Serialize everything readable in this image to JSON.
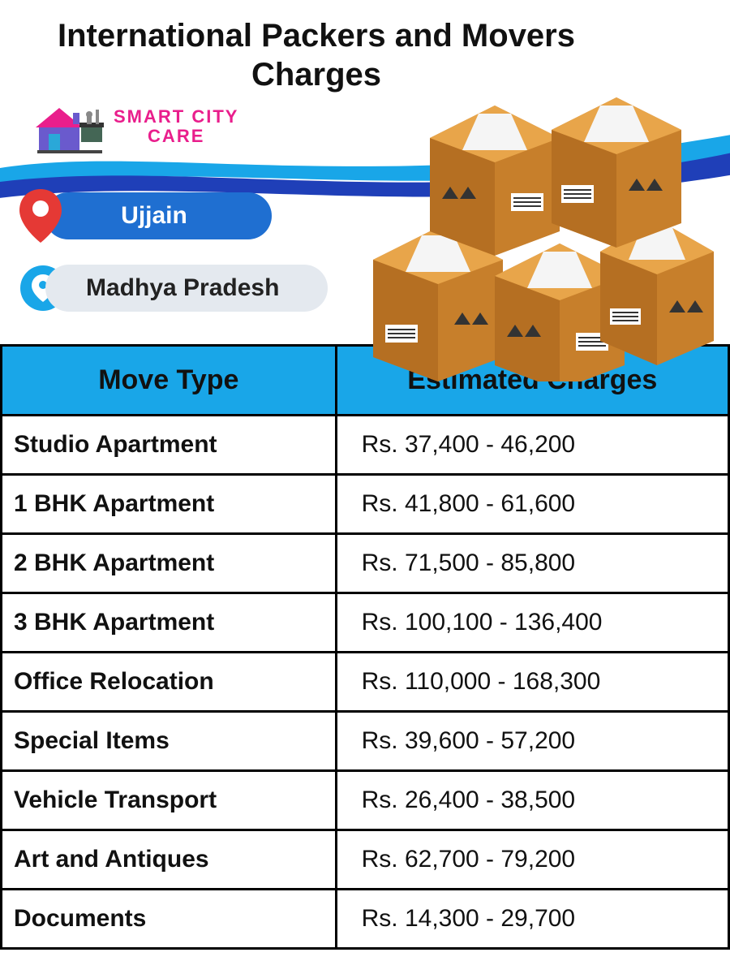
{
  "title": "International Packers and Movers Charges",
  "brand": {
    "line1": "SMART CITY",
    "line2": "CARE",
    "color": "#e91e8c"
  },
  "locations": {
    "city": "Ujjain",
    "state": "Madhya Pradesh",
    "city_pill_bg": "#1f6fd1",
    "state_pill_bg": "#e4e9ef",
    "pin_red": "#e53935",
    "pin_blue": "#19a6e8"
  },
  "swoosh_colors": {
    "top": "#19a6e8",
    "bottom": "#1f3fb8"
  },
  "boxes_color": "#e39a3b",
  "table": {
    "header_bg": "#19a6e8",
    "border_color": "#000000",
    "columns": [
      "Move Type",
      "Estimated Charges"
    ],
    "rows": [
      [
        "Studio Apartment",
        "Rs. 37,400 - 46,200"
      ],
      [
        "1 BHK Apartment",
        "Rs. 41,800 - 61,600"
      ],
      [
        "2 BHK Apartment",
        "Rs. 71,500 - 85,800"
      ],
      [
        "3 BHK Apartment",
        "Rs. 100,100 - 136,400"
      ],
      [
        "Office Relocation",
        "Rs. 110,000 - 168,300"
      ],
      [
        "Special Items",
        "Rs. 39,600 - 57,200"
      ],
      [
        "Vehicle Transport",
        "Rs. 26,400 - 38,500"
      ],
      [
        "Art and Antiques",
        "Rs. 62,700 - 79,200"
      ],
      [
        "Documents",
        "Rs. 14,300 - 29,700"
      ]
    ]
  }
}
